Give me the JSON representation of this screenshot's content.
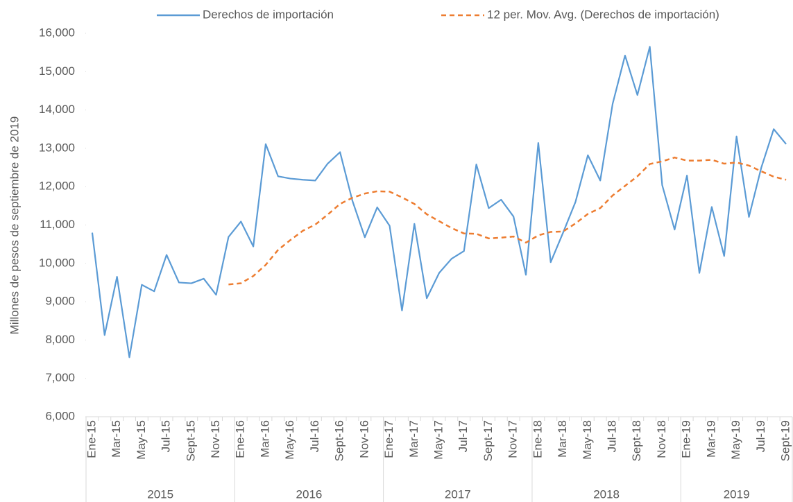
{
  "chart_data": {
    "type": "line",
    "y_label": "Millones de pesos de septiembre de 2019",
    "categories": [
      "Ene-15",
      null,
      "Mar-15",
      null,
      "May-15",
      null,
      "Jul-15",
      null,
      "Sept-15",
      null,
      "Nov-15",
      null,
      "Ene-16",
      null,
      "Mar-16",
      null,
      "May-16",
      null,
      "Jul-16",
      null,
      "Sept-16",
      null,
      "Nov-16",
      null,
      "Ene-17",
      null,
      "Mar-17",
      null,
      "May-17",
      null,
      "Jul-17",
      null,
      "Sept-17",
      null,
      "Nov-17",
      null,
      "Ene-18",
      null,
      "Mar-18",
      null,
      "May-18",
      null,
      "Jul-18",
      null,
      "Sept-18",
      null,
      "Nov-18",
      null,
      "Ene-19",
      null,
      "Mar-19",
      null,
      "May-19",
      null,
      "Jul-19",
      null,
      "Sept-19"
    ],
    "groups": [
      "2015",
      "2016",
      "2017",
      "2018",
      "2019"
    ],
    "series": [
      {
        "name": "Derechos de importación",
        "color": "#5b9bd5",
        "dash": false,
        "values": [
          10800,
          8130,
          9650,
          7550,
          9440,
          9270,
          10220,
          9500,
          9480,
          9600,
          9180,
          10690,
          11090,
          10440,
          13110,
          12270,
          12210,
          12180,
          12160,
          12600,
          12900,
          11630,
          10680,
          11460,
          10980,
          8770,
          11030,
          9090,
          9750,
          10120,
          10320,
          12580,
          11440,
          11660,
          11220,
          9700,
          13140,
          10030,
          10800,
          11600,
          12820,
          12160,
          14160,
          15420,
          14390,
          15650,
          12040,
          10880,
          12290,
          9750,
          11470,
          10190,
          13310,
          11210,
          12500,
          13500,
          13110
        ]
      },
      {
        "name": "12 per. Mov. Avg. (Derechos de importación)",
        "color": "#ed7d31",
        "dash": true,
        "values": [
          null,
          null,
          null,
          null,
          null,
          null,
          null,
          null,
          null,
          null,
          null,
          9450,
          9480,
          9670,
          9960,
          10350,
          10610,
          10850,
          11010,
          11270,
          11550,
          11710,
          11820,
          11880,
          11870,
          11720,
          11550,
          11280,
          11100,
          10920,
          10780,
          10770,
          10650,
          10670,
          10700,
          10540,
          10730,
          10820,
          10830,
          11040,
          11290,
          11440,
          11770,
          12020,
          12270,
          12590,
          12660,
          12760,
          12680,
          12680,
          12700,
          12600,
          12630,
          12550,
          12400,
          12260,
          12180
        ]
      }
    ],
    "ylim": [
      6000,
      16000
    ],
    "yticks": [
      {
        "value": 6000,
        "label": "6,000"
      },
      {
        "value": 7000,
        "label": "7,000"
      },
      {
        "value": 8000,
        "label": "8,000"
      },
      {
        "value": 9000,
        "label": "9,000"
      },
      {
        "value": 10000,
        "label": "10,000"
      },
      {
        "value": 11000,
        "label": "11,000"
      },
      {
        "value": 12000,
        "label": "12,000"
      },
      {
        "value": 13000,
        "label": "13,000"
      },
      {
        "value": 14000,
        "label": "14,000"
      },
      {
        "value": 15000,
        "label": "15,000"
      },
      {
        "value": 16000,
        "label": "16,000"
      }
    ],
    "legend": "top",
    "grid": false
  }
}
